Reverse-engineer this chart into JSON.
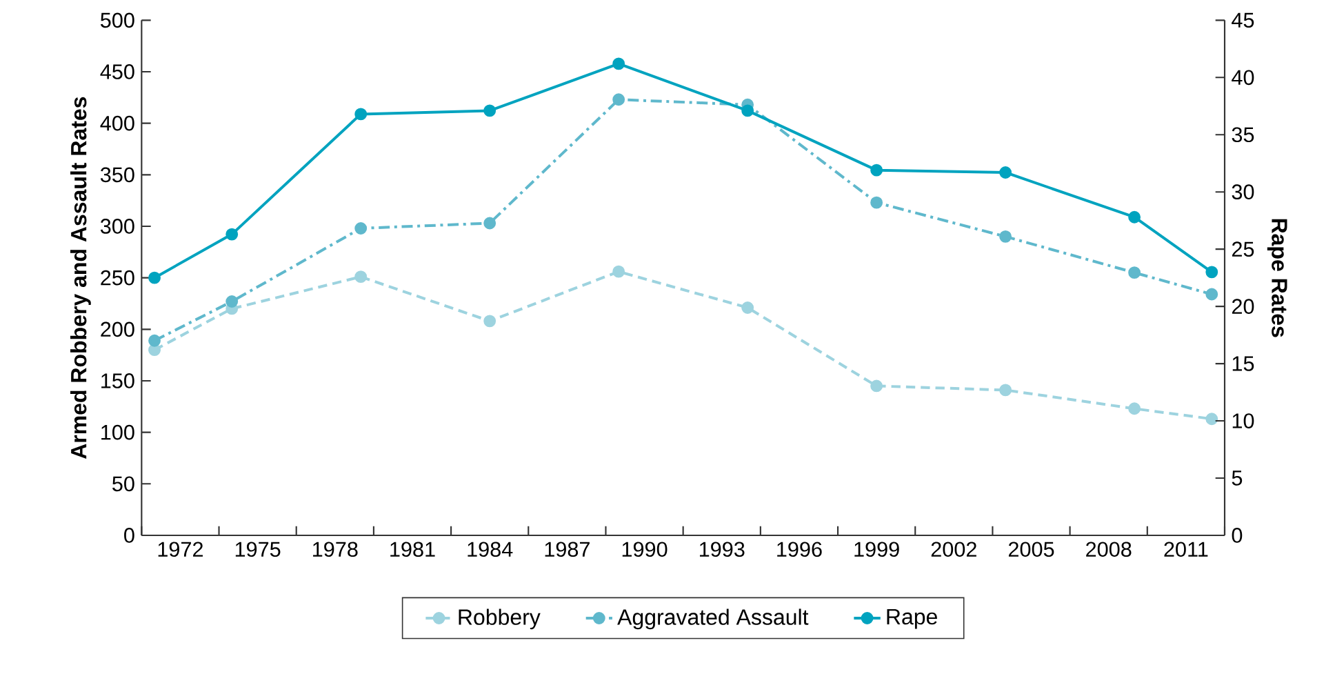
{
  "chart_data": {
    "type": "line",
    "ylabel": "Armed Robbery and Assault Rates",
    "y2label": "Rape Rates",
    "x": [
      1971,
      1974,
      1979,
      1984,
      1989,
      1994,
      1999,
      2004,
      2009,
      2012
    ],
    "xlim": [
      1970.5,
      2012.5
    ],
    "xticks": [
      {
        "value": 1970.5,
        "label": null
      },
      {
        "value": 1972,
        "label": "1972"
      },
      {
        "value": 1973.5,
        "label": null
      },
      {
        "value": 1975,
        "label": "1975"
      },
      {
        "value": 1976.5,
        "label": null
      },
      {
        "value": 1978,
        "label": "1978"
      },
      {
        "value": 1979.5,
        "label": null
      },
      {
        "value": 1981,
        "label": "1981"
      },
      {
        "value": 1982.5,
        "label": null
      },
      {
        "value": 1984,
        "label": "1984"
      },
      {
        "value": 1985.5,
        "label": null
      },
      {
        "value": 1987,
        "label": "1987"
      },
      {
        "value": 1988.5,
        "label": null
      },
      {
        "value": 1990,
        "label": "1990"
      },
      {
        "value": 1991.5,
        "label": null
      },
      {
        "value": 1993,
        "label": "1993"
      },
      {
        "value": 1994.5,
        "label": null
      },
      {
        "value": 1996,
        "label": "1996"
      },
      {
        "value": 1997.5,
        "label": null
      },
      {
        "value": 1999,
        "label": "1999"
      },
      {
        "value": 2000.5,
        "label": null
      },
      {
        "value": 2002,
        "label": "2002"
      },
      {
        "value": 2003.5,
        "label": null
      },
      {
        "value": 2005,
        "label": "2005"
      },
      {
        "value": 2006.5,
        "label": null
      },
      {
        "value": 2008,
        "label": "2008"
      },
      {
        "value": 2009.5,
        "label": null
      },
      {
        "value": 2011,
        "label": "2011"
      },
      {
        "value": 2012.5,
        "label": null
      }
    ],
    "ylim": [
      0,
      500
    ],
    "yticks": [
      0,
      50,
      100,
      150,
      200,
      250,
      300,
      350,
      400,
      450,
      500
    ],
    "y2lim": [
      0,
      45
    ],
    "y2ticks": [
      0,
      5,
      10,
      15,
      20,
      25,
      30,
      35,
      40,
      45
    ],
    "marker": "circle",
    "grid": false,
    "legend": "bottom",
    "series": [
      {
        "name": "Robbery",
        "color": "#9dd3df",
        "line_style": "dashed",
        "values": [
          180,
          220,
          251,
          208,
          256,
          221,
          145,
          141,
          123,
          113
        ]
      },
      {
        "name": "Aggravated Assault",
        "color": "#5fb8cc",
        "line_style": "dashdot",
        "values": [
          189,
          227,
          298,
          303,
          423,
          418,
          323,
          290,
          255,
          234
        ]
      },
      {
        "name": "Rape",
        "color": "#00a3bf",
        "line_style": "solid",
        "axis": "y2",
        "values": [
          22.5,
          26.3,
          36.8,
          37.1,
          41.2,
          37.1,
          31.9,
          31.7,
          27.8,
          23.0
        ]
      }
    ]
  }
}
